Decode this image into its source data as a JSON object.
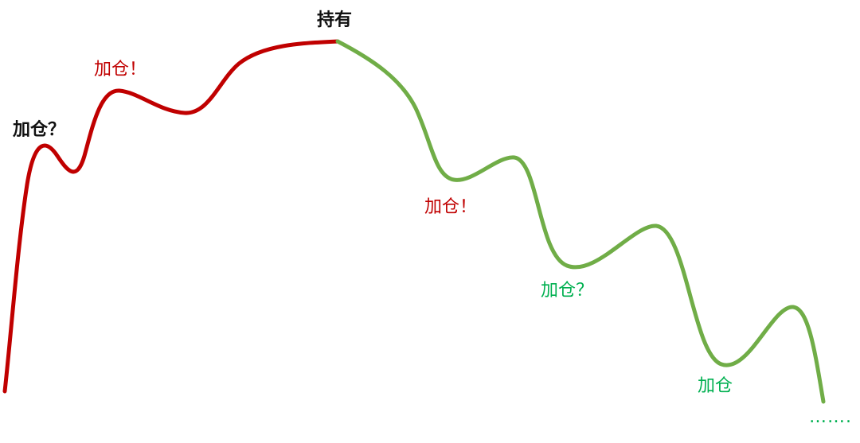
{
  "colors": {
    "rising": "#c00000",
    "falling": "#70ad47",
    "label_dark": "#111111",
    "label_red": "#c00000",
    "label_green": "#00b050"
  },
  "labels": {
    "add_question_top": "加仓？",
    "add_exclaim_top": "加仓！",
    "hold": "持有",
    "add_exclaim_bottom": "加仓！",
    "add_question_bottom": "加仓？",
    "add_plain": "加仓",
    "ellipsis": "……."
  }
}
